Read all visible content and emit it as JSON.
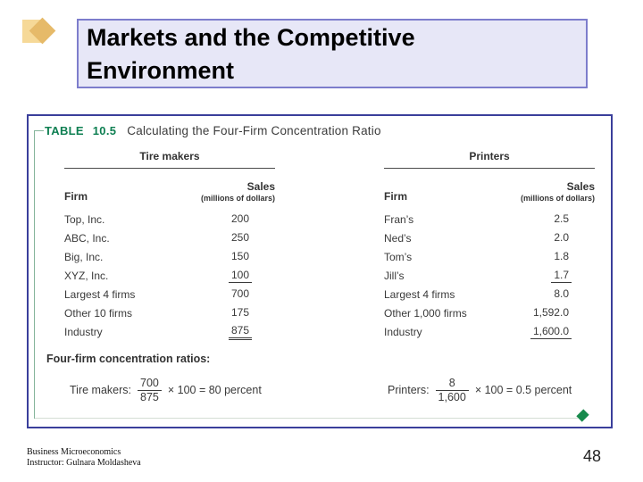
{
  "slide": {
    "title": "Markets and the Competitive Environment",
    "page_number": "48",
    "footer_line1": "Business Microeconomics",
    "footer_line2": "Instructor: Gulnara Moldasheva"
  },
  "table": {
    "label": "TABLE 10.5",
    "caption": "Calculating the Four-Firm Concentration Ratio",
    "col_firm": "Firm",
    "col_sales_line1": "Sales",
    "col_sales_line2": "(millions of dollars)",
    "groups": [
      {
        "name": "Tire makers",
        "rows": [
          {
            "firm": "Top, Inc.",
            "sales": "200"
          },
          {
            "firm": "ABC, Inc.",
            "sales": "250"
          },
          {
            "firm": "Big, Inc.",
            "sales": "150"
          },
          {
            "firm": "XYZ, Inc.",
            "sales": "100"
          },
          {
            "firm": "Largest 4 firms",
            "sales": "700"
          },
          {
            "firm": "Other 10 firms",
            "sales": "175"
          },
          {
            "firm": "Industry",
            "sales": "875"
          }
        ]
      },
      {
        "name": "Printers",
        "rows": [
          {
            "firm": "Fran’s",
            "sales": "2.5"
          },
          {
            "firm": "Ned’s",
            "sales": "2.0"
          },
          {
            "firm": "Tom’s",
            "sales": "1.8"
          },
          {
            "firm": "Jill’s",
            "sales": "1.7"
          },
          {
            "firm": "Largest 4 firms",
            "sales": "8.0"
          },
          {
            "firm": "Other 1,000 firms",
            "sales": "1,592.0"
          },
          {
            "firm": "Industry",
            "sales": "1,600.0"
          }
        ]
      }
    ],
    "ratios_heading": "Four-firm concentration ratios:",
    "ratios": [
      {
        "label": "Tire makers:",
        "numerator": "700",
        "denominator": "875",
        "rest": "× 100 = 80 percent"
      },
      {
        "label": "Printers:",
        "numerator": "8",
        "denominator": "1,600",
        "rest": "× 100 = 0.5 percent"
      }
    ]
  },
  "colors": {
    "accent_green": "#0e7f52",
    "bracket_green": "#84b49a",
    "diamond_green": "#178a4c",
    "frame_navy": "#3a3f9b",
    "title_bg": "#e7e7f7",
    "title_border": "#7d7dcc",
    "icon_tan": "#f6d998",
    "icon_gold": "#e6ba69"
  }
}
